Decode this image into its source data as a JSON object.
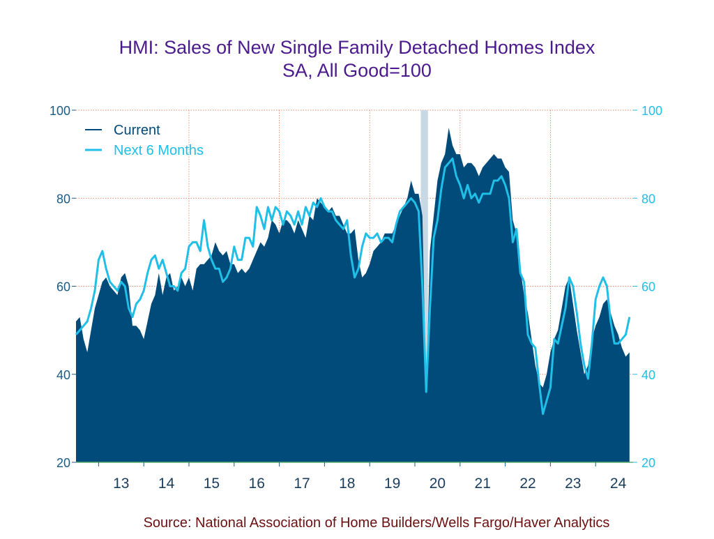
{
  "chart_data": {
    "type": "area",
    "title": "HMI: Sales of New Single Family Detached Homes Index",
    "subtitle": "SA, All Good=100",
    "source": "Source:  National Association of Home Builders/Wells Fargo/Haver Analytics",
    "ylim": [
      20,
      100
    ],
    "yticks_left": [
      "100",
      "80",
      "60",
      "40",
      "20"
    ],
    "yticks_right": [
      "100",
      "80",
      "60",
      "40",
      "20"
    ],
    "xlim": [
      2012.5,
      2024.83
    ],
    "xtick_labels": [
      "13",
      "14",
      "15",
      "16",
      "17",
      "18",
      "19",
      "20",
      "21",
      "22",
      "23",
      "24"
    ],
    "grid": true,
    "legend_position": "top-left",
    "recession_band": [
      2020.13,
      2020.29
    ],
    "colors": {
      "title": "#4b1a8c",
      "current": "#004b7a",
      "next6": "#1fbfe8",
      "axis_left": "#1a5b86",
      "axis_right": "#1fbfe8",
      "grid": "#e0673e",
      "band": "#c8d8e4",
      "source": "#6b1010"
    },
    "series": [
      {
        "name": "Current",
        "render": "area",
        "points": [
          [
            2012.5,
            52
          ],
          [
            2012.583,
            53
          ],
          [
            2012.667,
            48
          ],
          [
            2012.75,
            45
          ],
          [
            2012.833,
            50
          ],
          [
            2012.917,
            55
          ],
          [
            2013.0,
            58
          ],
          [
            2013.083,
            61
          ],
          [
            2013.167,
            62
          ],
          [
            2013.25,
            60
          ],
          [
            2013.333,
            59
          ],
          [
            2013.417,
            58
          ],
          [
            2013.5,
            62
          ],
          [
            2013.583,
            63
          ],
          [
            2013.667,
            60
          ],
          [
            2013.75,
            51
          ],
          [
            2013.833,
            51
          ],
          [
            2013.917,
            50
          ],
          [
            2014.0,
            48
          ],
          [
            2014.083,
            52
          ],
          [
            2014.167,
            56
          ],
          [
            2014.25,
            58
          ],
          [
            2014.333,
            63
          ],
          [
            2014.417,
            58
          ],
          [
            2014.5,
            62
          ],
          [
            2014.583,
            63
          ],
          [
            2014.667,
            59
          ],
          [
            2014.75,
            60
          ],
          [
            2014.833,
            62
          ],
          [
            2014.917,
            60
          ],
          [
            2015.0,
            62
          ],
          [
            2015.083,
            59
          ],
          [
            2015.167,
            64
          ],
          [
            2015.25,
            65
          ],
          [
            2015.333,
            65
          ],
          [
            2015.417,
            66
          ],
          [
            2015.5,
            67
          ],
          [
            2015.583,
            70
          ],
          [
            2015.667,
            68
          ],
          [
            2015.75,
            67
          ],
          [
            2015.833,
            68
          ],
          [
            2015.917,
            65
          ],
          [
            2016.0,
            65
          ],
          [
            2016.083,
            63
          ],
          [
            2016.167,
            64
          ],
          [
            2016.25,
            63
          ],
          [
            2016.333,
            64
          ],
          [
            2016.417,
            66
          ],
          [
            2016.5,
            68
          ],
          [
            2016.583,
            70
          ],
          [
            2016.667,
            69
          ],
          [
            2016.75,
            71
          ],
          [
            2016.833,
            75
          ],
          [
            2016.917,
            74
          ],
          [
            2017.0,
            72
          ],
          [
            2017.083,
            75
          ],
          [
            2017.167,
            75
          ],
          [
            2017.25,
            74
          ],
          [
            2017.333,
            72
          ],
          [
            2017.417,
            75
          ],
          [
            2017.5,
            73
          ],
          [
            2017.583,
            71
          ],
          [
            2017.667,
            76
          ],
          [
            2017.75,
            75
          ],
          [
            2017.833,
            80
          ],
          [
            2017.917,
            79
          ],
          [
            2018.0,
            78
          ],
          [
            2018.083,
            77
          ],
          [
            2018.167,
            78
          ],
          [
            2018.25,
            76
          ],
          [
            2018.333,
            76
          ],
          [
            2018.417,
            74
          ],
          [
            2018.5,
            72
          ],
          [
            2018.583,
            72
          ],
          [
            2018.667,
            73
          ],
          [
            2018.75,
            66
          ],
          [
            2018.833,
            62
          ],
          [
            2018.917,
            63
          ],
          [
            2019.0,
            65
          ],
          [
            2019.083,
            68
          ],
          [
            2019.167,
            69
          ],
          [
            2019.25,
            70
          ],
          [
            2019.333,
            72
          ],
          [
            2019.417,
            72
          ],
          [
            2019.5,
            72
          ],
          [
            2019.583,
            74
          ],
          [
            2019.667,
            76
          ],
          [
            2019.75,
            78
          ],
          [
            2019.833,
            80
          ],
          [
            2019.917,
            84
          ],
          [
            2020.0,
            81
          ],
          [
            2020.083,
            81
          ],
          [
            2020.167,
            76
          ],
          [
            2020.25,
            36
          ],
          [
            2020.333,
            68
          ],
          [
            2020.417,
            76
          ],
          [
            2020.5,
            84
          ],
          [
            2020.583,
            88
          ],
          [
            2020.667,
            90
          ],
          [
            2020.75,
            96
          ],
          [
            2020.833,
            92
          ],
          [
            2020.917,
            90
          ],
          [
            2021.0,
            90
          ],
          [
            2021.083,
            87
          ],
          [
            2021.167,
            88
          ],
          [
            2021.25,
            88
          ],
          [
            2021.333,
            87
          ],
          [
            2021.417,
            85
          ],
          [
            2021.5,
            87
          ],
          [
            2021.583,
            88
          ],
          [
            2021.667,
            89
          ],
          [
            2021.75,
            90
          ],
          [
            2021.833,
            89
          ],
          [
            2021.917,
            89
          ],
          [
            2022.0,
            87
          ],
          [
            2022.083,
            86
          ],
          [
            2022.167,
            75
          ],
          [
            2022.25,
            72
          ],
          [
            2022.333,
            64
          ],
          [
            2022.417,
            58
          ],
          [
            2022.5,
            54
          ],
          [
            2022.583,
            48
          ],
          [
            2022.667,
            42
          ],
          [
            2022.75,
            38
          ],
          [
            2022.833,
            37
          ],
          [
            2022.917,
            40
          ],
          [
            2023.0,
            45
          ],
          [
            2023.083,
            48
          ],
          [
            2023.167,
            50
          ],
          [
            2023.25,
            55
          ],
          [
            2023.333,
            60
          ],
          [
            2023.417,
            62
          ],
          [
            2023.5,
            56
          ],
          [
            2023.583,
            50
          ],
          [
            2023.667,
            45
          ],
          [
            2023.75,
            40
          ],
          [
            2023.833,
            42
          ],
          [
            2023.917,
            48
          ],
          [
            2024.0,
            51
          ],
          [
            2024.083,
            53
          ],
          [
            2024.167,
            56
          ],
          [
            2024.25,
            57
          ],
          [
            2024.333,
            54
          ],
          [
            2024.417,
            51
          ],
          [
            2024.5,
            49
          ],
          [
            2024.583,
            46
          ],
          [
            2024.667,
            44
          ],
          [
            2024.75,
            45
          ]
        ]
      },
      {
        "name": "Next 6 Months",
        "render": "line",
        "points": [
          [
            2012.5,
            49
          ],
          [
            2012.583,
            50
          ],
          [
            2012.667,
            51
          ],
          [
            2012.75,
            52
          ],
          [
            2012.833,
            55
          ],
          [
            2012.917,
            59
          ],
          [
            2013.0,
            66
          ],
          [
            2013.083,
            68
          ],
          [
            2013.167,
            64
          ],
          [
            2013.25,
            61
          ],
          [
            2013.333,
            60
          ],
          [
            2013.417,
            59
          ],
          [
            2013.5,
            61
          ],
          [
            2013.583,
            60
          ],
          [
            2013.667,
            55
          ],
          [
            2013.75,
            53
          ],
          [
            2013.833,
            56
          ],
          [
            2013.917,
            57
          ],
          [
            2014.0,
            59
          ],
          [
            2014.083,
            63
          ],
          [
            2014.167,
            66
          ],
          [
            2014.25,
            67
          ],
          [
            2014.333,
            64
          ],
          [
            2014.417,
            66
          ],
          [
            2014.5,
            63
          ],
          [
            2014.583,
            60
          ],
          [
            2014.667,
            60
          ],
          [
            2014.75,
            59
          ],
          [
            2014.833,
            63
          ],
          [
            2014.917,
            64
          ],
          [
            2015.0,
            69
          ],
          [
            2015.083,
            70
          ],
          [
            2015.167,
            70
          ],
          [
            2015.25,
            68
          ],
          [
            2015.333,
            75
          ],
          [
            2015.417,
            69
          ],
          [
            2015.5,
            66
          ],
          [
            2015.583,
            64
          ],
          [
            2015.667,
            64
          ],
          [
            2015.75,
            61
          ],
          [
            2015.833,
            62
          ],
          [
            2015.917,
            64
          ],
          [
            2016.0,
            69
          ],
          [
            2016.083,
            66
          ],
          [
            2016.167,
            66
          ],
          [
            2016.25,
            71
          ],
          [
            2016.333,
            71
          ],
          [
            2016.417,
            69
          ],
          [
            2016.5,
            78
          ],
          [
            2016.583,
            76
          ],
          [
            2016.667,
            73
          ],
          [
            2016.75,
            78
          ],
          [
            2016.833,
            75
          ],
          [
            2016.917,
            78
          ],
          [
            2017.0,
            77
          ],
          [
            2017.083,
            74
          ],
          [
            2017.167,
            77
          ],
          [
            2017.25,
            76
          ],
          [
            2017.333,
            74
          ],
          [
            2017.417,
            77
          ],
          [
            2017.5,
            74
          ],
          [
            2017.583,
            78
          ],
          [
            2017.667,
            76
          ],
          [
            2017.75,
            79
          ],
          [
            2017.833,
            78
          ],
          [
            2017.917,
            80
          ],
          [
            2018.0,
            78
          ],
          [
            2018.083,
            77
          ],
          [
            2018.167,
            77
          ],
          [
            2018.25,
            75
          ],
          [
            2018.333,
            74
          ],
          [
            2018.417,
            73
          ],
          [
            2018.5,
            75
          ],
          [
            2018.583,
            67
          ],
          [
            2018.667,
            62
          ],
          [
            2018.75,
            64
          ],
          [
            2018.833,
            69
          ],
          [
            2018.917,
            72
          ],
          [
            2019.0,
            71
          ],
          [
            2019.083,
            71
          ],
          [
            2019.167,
            72
          ],
          [
            2019.25,
            70
          ],
          [
            2019.333,
            71
          ],
          [
            2019.417,
            71
          ],
          [
            2019.5,
            70
          ],
          [
            2019.583,
            74
          ],
          [
            2019.667,
            77
          ],
          [
            2019.75,
            78
          ],
          [
            2019.833,
            79
          ],
          [
            2019.917,
            80
          ],
          [
            2020.0,
            79
          ],
          [
            2020.083,
            77
          ],
          [
            2020.167,
            60
          ],
          [
            2020.25,
            36
          ],
          [
            2020.333,
            55
          ],
          [
            2020.417,
            71
          ],
          [
            2020.5,
            75
          ],
          [
            2020.583,
            82
          ],
          [
            2020.667,
            87
          ],
          [
            2020.75,
            88
          ],
          [
            2020.833,
            89
          ],
          [
            2020.917,
            85
          ],
          [
            2021.0,
            83
          ],
          [
            2021.083,
            80
          ],
          [
            2021.167,
            83
          ],
          [
            2021.25,
            80
          ],
          [
            2021.333,
            81
          ],
          [
            2021.417,
            79
          ],
          [
            2021.5,
            81
          ],
          [
            2021.583,
            81
          ],
          [
            2021.667,
            81
          ],
          [
            2021.75,
            84
          ],
          [
            2021.833,
            84
          ],
          [
            2021.917,
            85
          ],
          [
            2022.0,
            83
          ],
          [
            2022.083,
            80
          ],
          [
            2022.167,
            70
          ],
          [
            2022.25,
            73
          ],
          [
            2022.333,
            63
          ],
          [
            2022.417,
            61
          ],
          [
            2022.5,
            49
          ],
          [
            2022.583,
            47
          ],
          [
            2022.667,
            46
          ],
          [
            2022.75,
            38
          ],
          [
            2022.833,
            31
          ],
          [
            2022.917,
            34
          ],
          [
            2023.0,
            37
          ],
          [
            2023.083,
            48
          ],
          [
            2023.167,
            47
          ],
          [
            2023.25,
            51
          ],
          [
            2023.333,
            55
          ],
          [
            2023.417,
            62
          ],
          [
            2023.5,
            60
          ],
          [
            2023.583,
            54
          ],
          [
            2023.667,
            47
          ],
          [
            2023.75,
            42
          ],
          [
            2023.833,
            39
          ],
          [
            2023.917,
            47
          ],
          [
            2024.0,
            57
          ],
          [
            2024.083,
            60
          ],
          [
            2024.167,
            62
          ],
          [
            2024.25,
            60
          ],
          [
            2024.333,
            52
          ],
          [
            2024.417,
            47
          ],
          [
            2024.5,
            47
          ],
          [
            2024.583,
            48
          ],
          [
            2024.667,
            49
          ],
          [
            2024.75,
            53
          ]
        ]
      }
    ]
  }
}
